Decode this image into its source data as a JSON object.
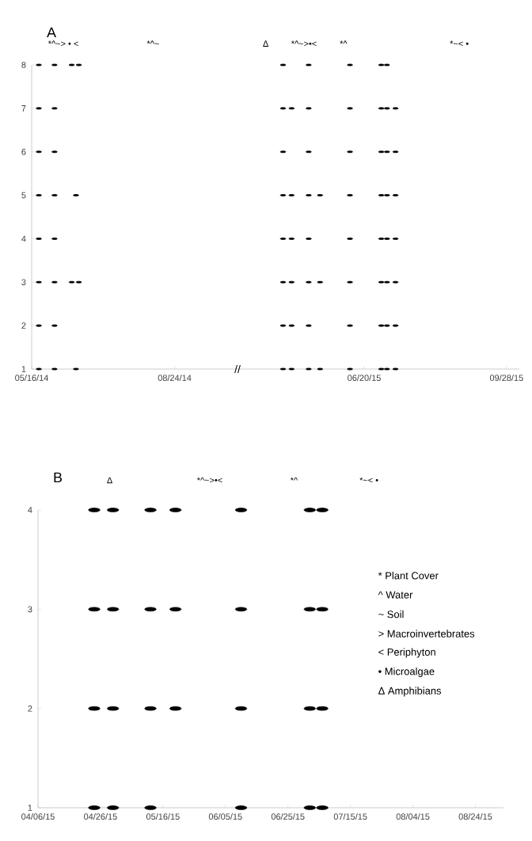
{
  "chart_data": [
    {
      "type": "scatter",
      "title": "A",
      "xlim": [
        "2014-05-16",
        "2014-10-07"
      ],
      "xticks": [
        {
          "value": "2014-05-16",
          "label": "05/16/14"
        },
        {
          "value": "2014-08-24",
          "label": "08/24/14"
        }
      ],
      "ylim": [
        1,
        8
      ],
      "yticks": [
        1,
        2,
        3,
        4,
        5,
        6,
        7,
        8
      ],
      "series": [
        {
          "color": "#000000",
          "x": [
            "2014-05-21",
            "2014-05-21",
            "2014-05-21",
            "2014-05-21",
            "2014-05-21",
            "2014-05-21",
            "2014-05-21",
            "2014-05-21",
            "2014-06-01",
            "2014-06-01",
            "2014-06-01",
            "2014-06-01",
            "2014-06-01",
            "2014-06-01",
            "2014-06-01",
            "2014-06-01",
            "2014-06-13",
            "2014-06-13",
            "2014-06-16",
            "2014-06-16",
            "2014-06-18",
            "2014-06-18"
          ],
          "values": [
            8,
            7,
            6,
            5,
            4,
            3,
            2,
            1,
            8,
            7,
            6,
            5,
            4,
            3,
            2,
            1,
            8,
            3,
            5,
            1,
            8,
            3
          ]
        }
      ],
      "annotations": [
        "*^~> • <",
        "*^~"
      ]
    },
    {
      "type": "scatter",
      "tick_labels": "x",
      "xlim": [
        "2015-03-23",
        "2015-10-07"
      ],
      "xticks": [
        {
          "value": "2015-06-20",
          "label": "06/20/15"
        },
        {
          "value": "2015-09-28",
          "label": "09/28/15"
        }
      ],
      "ylim": [
        1,
        8
      ],
      "yticks": [
        1,
        2,
        3,
        4,
        5,
        6,
        7,
        8
      ],
      "series": [
        {
          "color": "#000000",
          "x": [
            "2015-04-24",
            "2015-04-24",
            "2015-04-24",
            "2015-04-24",
            "2015-04-24",
            "2015-04-24",
            "2015-04-24",
            "2015-04-24",
            "2015-04-30",
            "2015-04-30",
            "2015-04-30",
            "2015-04-30",
            "2015-04-30",
            "2015-04-30",
            "2015-05-12",
            "2015-05-12",
            "2015-05-12",
            "2015-05-12",
            "2015-05-12",
            "2015-05-12",
            "2015-05-12",
            "2015-05-12",
            "2015-05-20",
            "2015-05-20",
            "2015-05-20",
            "2015-06-10",
            "2015-06-10",
            "2015-06-10",
            "2015-06-10",
            "2015-06-10",
            "2015-06-10",
            "2015-06-10",
            "2015-06-10",
            "2015-07-02",
            "2015-07-02",
            "2015-07-02",
            "2015-07-02",
            "2015-07-02",
            "2015-07-02",
            "2015-07-02",
            "2015-07-02",
            "2015-07-06",
            "2015-07-06",
            "2015-07-06",
            "2015-07-06",
            "2015-07-06",
            "2015-07-06",
            "2015-07-06",
            "2015-07-06",
            "2015-07-12",
            "2015-07-12",
            "2015-07-12",
            "2015-07-12",
            "2015-07-12",
            "2015-07-12",
            "2015-07-12"
          ],
          "values": [
            8,
            7,
            6,
            5,
            4,
            3,
            2,
            1,
            7,
            5,
            4,
            3,
            2,
            1,
            8,
            7,
            6,
            5,
            4,
            3,
            2,
            1,
            5,
            3,
            1,
            8,
            7,
            6,
            5,
            4,
            3,
            2,
            1,
            8,
            7,
            6,
            5,
            4,
            3,
            2,
            1,
            8,
            7,
            6,
            5,
            4,
            3,
            2,
            1,
            7,
            6,
            5,
            4,
            3,
            2,
            1
          ]
        }
      ],
      "annotations": [
        "Δ",
        "*^~>•<",
        "*^",
        "*~< •",
        "//"
      ]
    },
    {
      "type": "scatter",
      "title": "B",
      "xlim": [
        "2015-04-06",
        "2015-09-02"
      ],
      "xticks": [
        {
          "value": "2015-04-06",
          "label": "04/06/15"
        },
        {
          "value": "2015-04-26",
          "label": "04/26/15"
        },
        {
          "value": "2015-05-16",
          "label": "05/16/15"
        },
        {
          "value": "2015-06-05",
          "label": "06/05/15"
        },
        {
          "value": "2015-06-25",
          "label": "06/25/15"
        },
        {
          "value": "2015-07-15",
          "label": "07/15/15"
        },
        {
          "value": "2015-08-04",
          "label": "08/04/15"
        },
        {
          "value": "2015-08-24",
          "label": "08/24/15"
        }
      ],
      "ylim": [
        1,
        4
      ],
      "yticks": [
        1,
        2,
        3,
        4
      ],
      "series": [
        {
          "color": "#000000",
          "x": [
            "2015-04-24",
            "2015-04-24",
            "2015-04-24",
            "2015-04-24",
            "2015-04-30",
            "2015-04-30",
            "2015-04-30",
            "2015-04-30",
            "2015-05-12",
            "2015-05-12",
            "2015-05-12",
            "2015-05-12",
            "2015-05-20",
            "2015-05-20",
            "2015-05-20",
            "2015-06-10",
            "2015-06-10",
            "2015-06-10",
            "2015-06-10",
            "2015-07-02",
            "2015-07-02",
            "2015-07-02",
            "2015-07-02",
            "2015-07-06",
            "2015-07-06",
            "2015-07-06",
            "2015-07-06"
          ],
          "values": [
            4,
            3,
            2,
            1,
            4,
            3,
            2,
            1,
            4,
            3,
            2,
            1,
            4,
            3,
            2,
            4,
            3,
            2,
            1,
            4,
            3,
            2,
            1,
            4,
            3,
            2,
            1
          ]
        }
      ],
      "annotations": [
        "Δ",
        "*^~>•<",
        "*^",
        "*~< •",
        "* Plant Cover",
        "^ Water",
        "~ Soil",
        "> Macroinvertebrates",
        "< Periphyton",
        "• Microalgae",
        "Δ Amphibians"
      ]
    }
  ]
}
